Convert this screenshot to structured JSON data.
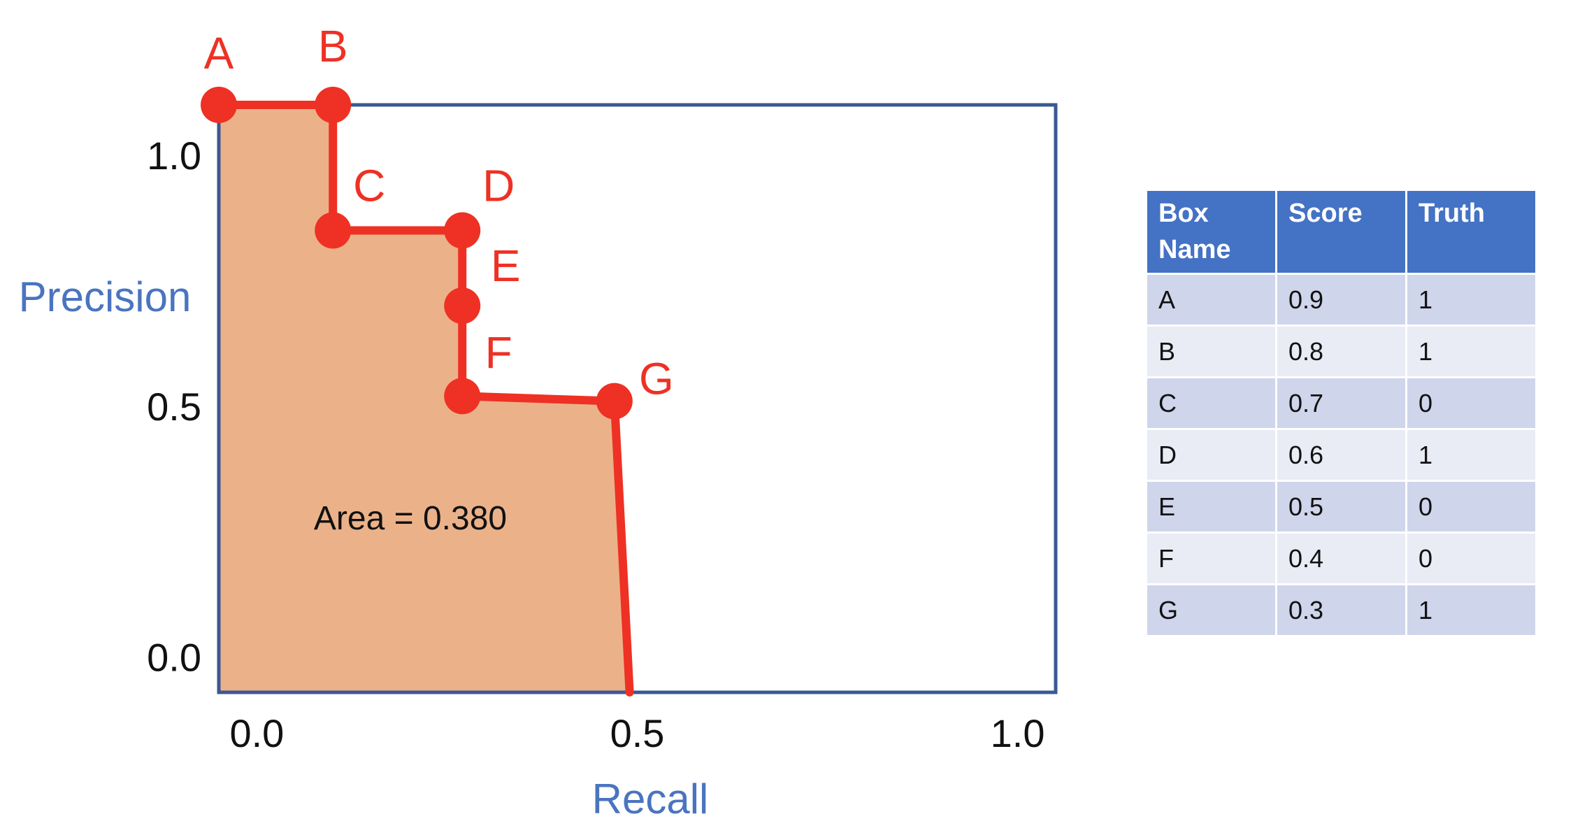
{
  "chart_data": {
    "type": "line",
    "xlabel": "Recall",
    "ylabel": "Precision",
    "xlim": [
      -0.05,
      1.05
    ],
    "ylim": [
      -0.07,
      1.1
    ],
    "xticks": [
      "0.0",
      "0.5",
      "1.0"
    ],
    "xtick_values": [
      0.0,
      0.5,
      1.0
    ],
    "yticks": [
      "0.0",
      "0.5",
      "1.0"
    ],
    "ytick_values": [
      0.0,
      0.5,
      1.0
    ],
    "points": [
      {
        "label": "A",
        "x": -0.05,
        "y": 1.1
      },
      {
        "label": "B",
        "x": 0.1,
        "y": 1.1
      },
      {
        "label": "C",
        "x": 0.1,
        "y": 0.85
      },
      {
        "label": "D",
        "x": 0.27,
        "y": 0.85
      },
      {
        "label": "E",
        "x": 0.27,
        "y": 0.7
      },
      {
        "label": "F",
        "x": 0.27,
        "y": 0.52
      },
      {
        "label": "G",
        "x": 0.47,
        "y": 0.51
      }
    ],
    "curve_end": {
      "x": 0.49,
      "y": -0.07
    },
    "annotation": "Area = 0.380",
    "colors": {
      "curve": "#ee3124",
      "fill": "#ebb28a",
      "frame": "#3a5894",
      "axis_label": "#4a74c0"
    }
  },
  "table": {
    "headers": [
      "Box\nName",
      "Score",
      "Truth"
    ],
    "rows": [
      [
        "A",
        "0.9",
        "1"
      ],
      [
        "B",
        "0.8",
        "1"
      ],
      [
        "C",
        "0.7",
        "0"
      ],
      [
        "D",
        "0.6",
        "1"
      ],
      [
        "E",
        "0.5",
        "0"
      ],
      [
        "F",
        "0.4",
        "0"
      ],
      [
        "G",
        "0.3",
        "1"
      ]
    ]
  }
}
